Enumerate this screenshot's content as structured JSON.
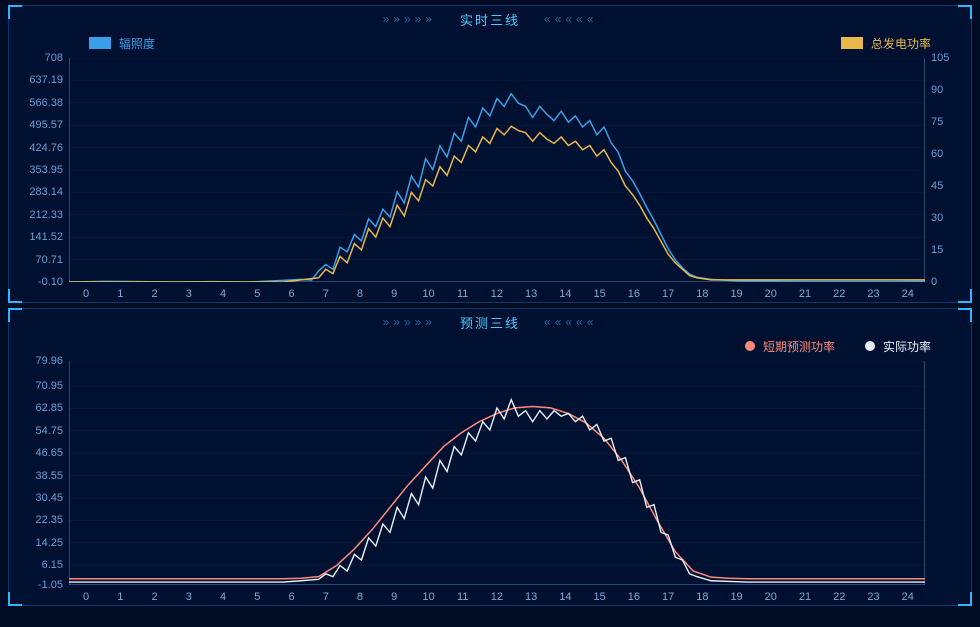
{
  "colors": {
    "background": "#000b24",
    "panel_bg": "#001030",
    "panel_border": "#0a3a6b",
    "corner": "#2bb6ff",
    "title_text": "#4fc8ff",
    "deco_text": "#1d6aa8",
    "tick_text": "#6a9fd6",
    "axis_line": "#4a86b8",
    "grid_line": "#1a3a5a"
  },
  "chart1": {
    "title": "实时三线",
    "deco_left": "»»»»»",
    "deco_right": "«««««",
    "type": "line",
    "legend": [
      {
        "label": "辐照度",
        "color": "#3a9ee8",
        "shape": "rect",
        "side": "left"
      },
      {
        "label": "总发电功率",
        "color": "#e8b84a",
        "shape": "rect",
        "side": "right"
      }
    ],
    "x": {
      "min": 0,
      "max": 24,
      "ticks": [
        0,
        1,
        2,
        3,
        4,
        5,
        6,
        7,
        8,
        9,
        10,
        11,
        12,
        13,
        14,
        15,
        16,
        17,
        18,
        19,
        20,
        21,
        22,
        23,
        24
      ]
    },
    "y_left": {
      "min": -0.1,
      "max": 708.0,
      "ticks": [
        -0.1,
        70.71,
        141.52,
        212.33,
        283.14,
        353.95,
        424.76,
        495.57,
        566.38,
        637.19,
        708.0
      ]
    },
    "y_right": {
      "min": 0,
      "max": 105,
      "ticks": [
        0,
        15,
        30,
        45,
        60,
        75,
        90,
        105
      ]
    },
    "series": [
      {
        "name": "辐照度",
        "yaxis": "left",
        "color": "#3a9ee8",
        "line_width": 1.5,
        "points": [
          [
            0,
            0
          ],
          [
            1,
            2
          ],
          [
            2,
            1
          ],
          [
            3,
            0
          ],
          [
            4,
            1
          ],
          [
            5,
            0
          ],
          [
            6,
            5
          ],
          [
            6.5,
            8
          ],
          [
            6.8,
            6
          ],
          [
            7,
            35
          ],
          [
            7.2,
            55
          ],
          [
            7.4,
            40
          ],
          [
            7.6,
            110
          ],
          [
            7.8,
            95
          ],
          [
            8,
            150
          ],
          [
            8.2,
            130
          ],
          [
            8.4,
            200
          ],
          [
            8.6,
            175
          ],
          [
            8.8,
            230
          ],
          [
            9,
            205
          ],
          [
            9.2,
            285
          ],
          [
            9.4,
            250
          ],
          [
            9.6,
            335
          ],
          [
            9.8,
            300
          ],
          [
            10,
            390
          ],
          [
            10.2,
            355
          ],
          [
            10.4,
            430
          ],
          [
            10.6,
            395
          ],
          [
            10.8,
            470
          ],
          [
            11,
            445
          ],
          [
            11.2,
            520
          ],
          [
            11.4,
            490
          ],
          [
            11.6,
            550
          ],
          [
            11.8,
            525
          ],
          [
            12,
            580
          ],
          [
            12.2,
            555
          ],
          [
            12.4,
            595
          ],
          [
            12.6,
            565
          ],
          [
            12.8,
            555
          ],
          [
            13,
            520
          ],
          [
            13.2,
            555
          ],
          [
            13.4,
            530
          ],
          [
            13.6,
            510
          ],
          [
            13.8,
            540
          ],
          [
            14,
            505
          ],
          [
            14.2,
            525
          ],
          [
            14.4,
            490
          ],
          [
            14.6,
            510
          ],
          [
            14.8,
            465
          ],
          [
            15,
            490
          ],
          [
            15.2,
            440
          ],
          [
            15.4,
            410
          ],
          [
            15.6,
            350
          ],
          [
            15.8,
            320
          ],
          [
            16,
            280
          ],
          [
            16.2,
            235
          ],
          [
            16.4,
            195
          ],
          [
            16.6,
            150
          ],
          [
            16.8,
            105
          ],
          [
            17,
            70
          ],
          [
            17.2,
            45
          ],
          [
            17.4,
            25
          ],
          [
            17.6,
            15
          ],
          [
            18,
            8
          ],
          [
            18.5,
            5
          ],
          [
            19,
            3
          ],
          [
            20,
            2
          ],
          [
            21,
            1
          ],
          [
            22,
            1
          ],
          [
            23,
            1
          ],
          [
            24,
            2
          ]
        ]
      },
      {
        "name": "总发电功率",
        "yaxis": "right",
        "color": "#e8b84a",
        "line_width": 1.5,
        "points": [
          [
            0,
            0
          ],
          [
            1,
            0
          ],
          [
            2,
            0
          ],
          [
            3,
            0
          ],
          [
            4,
            0
          ],
          [
            5,
            0
          ],
          [
            6,
            0
          ],
          [
            6.5,
            1
          ],
          [
            7,
            2
          ],
          [
            7.2,
            6
          ],
          [
            7.4,
            4
          ],
          [
            7.6,
            12
          ],
          [
            7.8,
            9
          ],
          [
            8,
            18
          ],
          [
            8.2,
            15
          ],
          [
            8.4,
            25
          ],
          [
            8.6,
            21
          ],
          [
            8.8,
            30
          ],
          [
            9,
            26
          ],
          [
            9.2,
            36
          ],
          [
            9.4,
            31
          ],
          [
            9.6,
            42
          ],
          [
            9.8,
            38
          ],
          [
            10,
            48
          ],
          [
            10.2,
            45
          ],
          [
            10.4,
            54
          ],
          [
            10.6,
            50
          ],
          [
            10.8,
            59
          ],
          [
            11,
            56
          ],
          [
            11.2,
            64
          ],
          [
            11.4,
            61
          ],
          [
            11.6,
            68
          ],
          [
            11.8,
            65
          ],
          [
            12,
            72
          ],
          [
            12.2,
            69
          ],
          [
            12.4,
            73
          ],
          [
            12.6,
            71
          ],
          [
            12.8,
            70
          ],
          [
            13,
            66
          ],
          [
            13.2,
            70
          ],
          [
            13.4,
            67
          ],
          [
            13.6,
            65
          ],
          [
            13.8,
            68
          ],
          [
            14,
            64
          ],
          [
            14.2,
            66
          ],
          [
            14.4,
            62
          ],
          [
            14.6,
            64
          ],
          [
            14.8,
            59
          ],
          [
            15,
            62
          ],
          [
            15.2,
            56
          ],
          [
            15.4,
            52
          ],
          [
            15.6,
            45
          ],
          [
            15.8,
            41
          ],
          [
            16,
            36
          ],
          [
            16.2,
            30
          ],
          [
            16.4,
            25
          ],
          [
            16.6,
            19
          ],
          [
            16.8,
            13
          ],
          [
            17,
            9
          ],
          [
            17.2,
            6
          ],
          [
            17.4,
            3
          ],
          [
            17.6,
            2
          ],
          [
            18,
            1
          ],
          [
            19,
            1
          ],
          [
            20,
            1
          ],
          [
            21,
            1
          ],
          [
            22,
            1
          ],
          [
            23,
            1
          ],
          [
            24,
            1
          ]
        ]
      }
    ]
  },
  "chart2": {
    "title": "预测三线",
    "deco_left": "»»»»»",
    "deco_right": "«««««",
    "type": "line",
    "legend": [
      {
        "label": "短期预测功率",
        "color": "#ff8a7a",
        "shape": "dot",
        "side": "right"
      },
      {
        "label": "实际功率",
        "color": "#e8f0f8",
        "shape": "dot",
        "side": "right"
      }
    ],
    "x": {
      "min": 0,
      "max": 24,
      "ticks": [
        0,
        1,
        2,
        3,
        4,
        5,
        6,
        7,
        8,
        9,
        10,
        11,
        12,
        13,
        14,
        15,
        16,
        17,
        18,
        19,
        20,
        21,
        22,
        23,
        24
      ]
    },
    "y_left": {
      "min": -1.05,
      "max": 79.96,
      "ticks": [
        -1.05,
        6.15,
        14.25,
        22.35,
        30.45,
        38.55,
        46.65,
        54.75,
        62.85,
        70.95,
        79.96
      ]
    },
    "series": [
      {
        "name": "短期预测功率",
        "yaxis": "left",
        "color": "#ff8a7a",
        "line_width": 1.5,
        "points": [
          [
            0,
            1.2
          ],
          [
            1,
            1.2
          ],
          [
            2,
            1.2
          ],
          [
            3,
            1.2
          ],
          [
            4,
            1.2
          ],
          [
            5,
            1.2
          ],
          [
            6,
            1.2
          ],
          [
            6.5,
            1.4
          ],
          [
            7,
            2
          ],
          [
            7.5,
            6
          ],
          [
            8,
            12
          ],
          [
            8.5,
            19
          ],
          [
            9,
            27
          ],
          [
            9.5,
            35
          ],
          [
            10,
            42
          ],
          [
            10.5,
            49
          ],
          [
            11,
            54
          ],
          [
            11.5,
            58
          ],
          [
            12,
            61
          ],
          [
            12.5,
            63
          ],
          [
            13,
            63.5
          ],
          [
            13.5,
            63
          ],
          [
            14,
            61
          ],
          [
            14.5,
            57.5
          ],
          [
            15,
            52
          ],
          [
            15.5,
            44
          ],
          [
            16,
            34
          ],
          [
            16.5,
            22
          ],
          [
            17,
            11
          ],
          [
            17.5,
            4
          ],
          [
            18,
            1.8
          ],
          [
            18.5,
            1.4
          ],
          [
            19,
            1.2
          ],
          [
            20,
            1.2
          ],
          [
            21,
            1.2
          ],
          [
            22,
            1.2
          ],
          [
            23,
            1.2
          ],
          [
            24,
            1.2
          ]
        ]
      },
      {
        "name": "实际功率",
        "yaxis": "left",
        "color": "#e8f0f8",
        "line_width": 1.4,
        "points": [
          [
            0,
            0
          ],
          [
            1,
            0
          ],
          [
            2,
            0
          ],
          [
            3,
            0
          ],
          [
            4,
            0
          ],
          [
            5,
            0
          ],
          [
            6,
            0
          ],
          [
            6.5,
            0.5
          ],
          [
            7,
            1
          ],
          [
            7.2,
            3
          ],
          [
            7.4,
            2
          ],
          [
            7.6,
            6
          ],
          [
            7.8,
            4
          ],
          [
            8,
            10
          ],
          [
            8.2,
            8
          ],
          [
            8.4,
            16
          ],
          [
            8.6,
            13
          ],
          [
            8.8,
            21
          ],
          [
            9,
            18
          ],
          [
            9.2,
            27
          ],
          [
            9.4,
            23
          ],
          [
            9.6,
            32
          ],
          [
            9.8,
            28
          ],
          [
            10,
            38
          ],
          [
            10.2,
            34
          ],
          [
            10.4,
            44
          ],
          [
            10.6,
            40
          ],
          [
            10.8,
            49
          ],
          [
            11,
            46
          ],
          [
            11.2,
            54
          ],
          [
            11.4,
            51
          ],
          [
            11.6,
            58
          ],
          [
            11.8,
            55
          ],
          [
            12,
            63
          ],
          [
            12.2,
            59
          ],
          [
            12.4,
            66
          ],
          [
            12.6,
            60
          ],
          [
            12.8,
            62
          ],
          [
            13,
            58
          ],
          [
            13.2,
            62
          ],
          [
            13.4,
            59
          ],
          [
            13.6,
            62
          ],
          [
            13.8,
            60
          ],
          [
            14,
            61
          ],
          [
            14.2,
            58
          ],
          [
            14.4,
            60
          ],
          [
            14.6,
            55
          ],
          [
            14.8,
            57
          ],
          [
            15,
            51
          ],
          [
            15.2,
            52
          ],
          [
            15.4,
            44
          ],
          [
            15.6,
            45
          ],
          [
            15.8,
            36
          ],
          [
            16,
            37
          ],
          [
            16.2,
            27
          ],
          [
            16.4,
            28
          ],
          [
            16.6,
            18
          ],
          [
            16.8,
            17
          ],
          [
            17,
            9
          ],
          [
            17.2,
            8
          ],
          [
            17.4,
            3
          ],
          [
            17.6,
            2
          ],
          [
            18,
            0.5
          ],
          [
            19,
            0
          ],
          [
            20,
            0
          ],
          [
            21,
            0
          ],
          [
            22,
            0
          ],
          [
            23,
            0
          ],
          [
            24,
            0
          ]
        ]
      }
    ]
  }
}
